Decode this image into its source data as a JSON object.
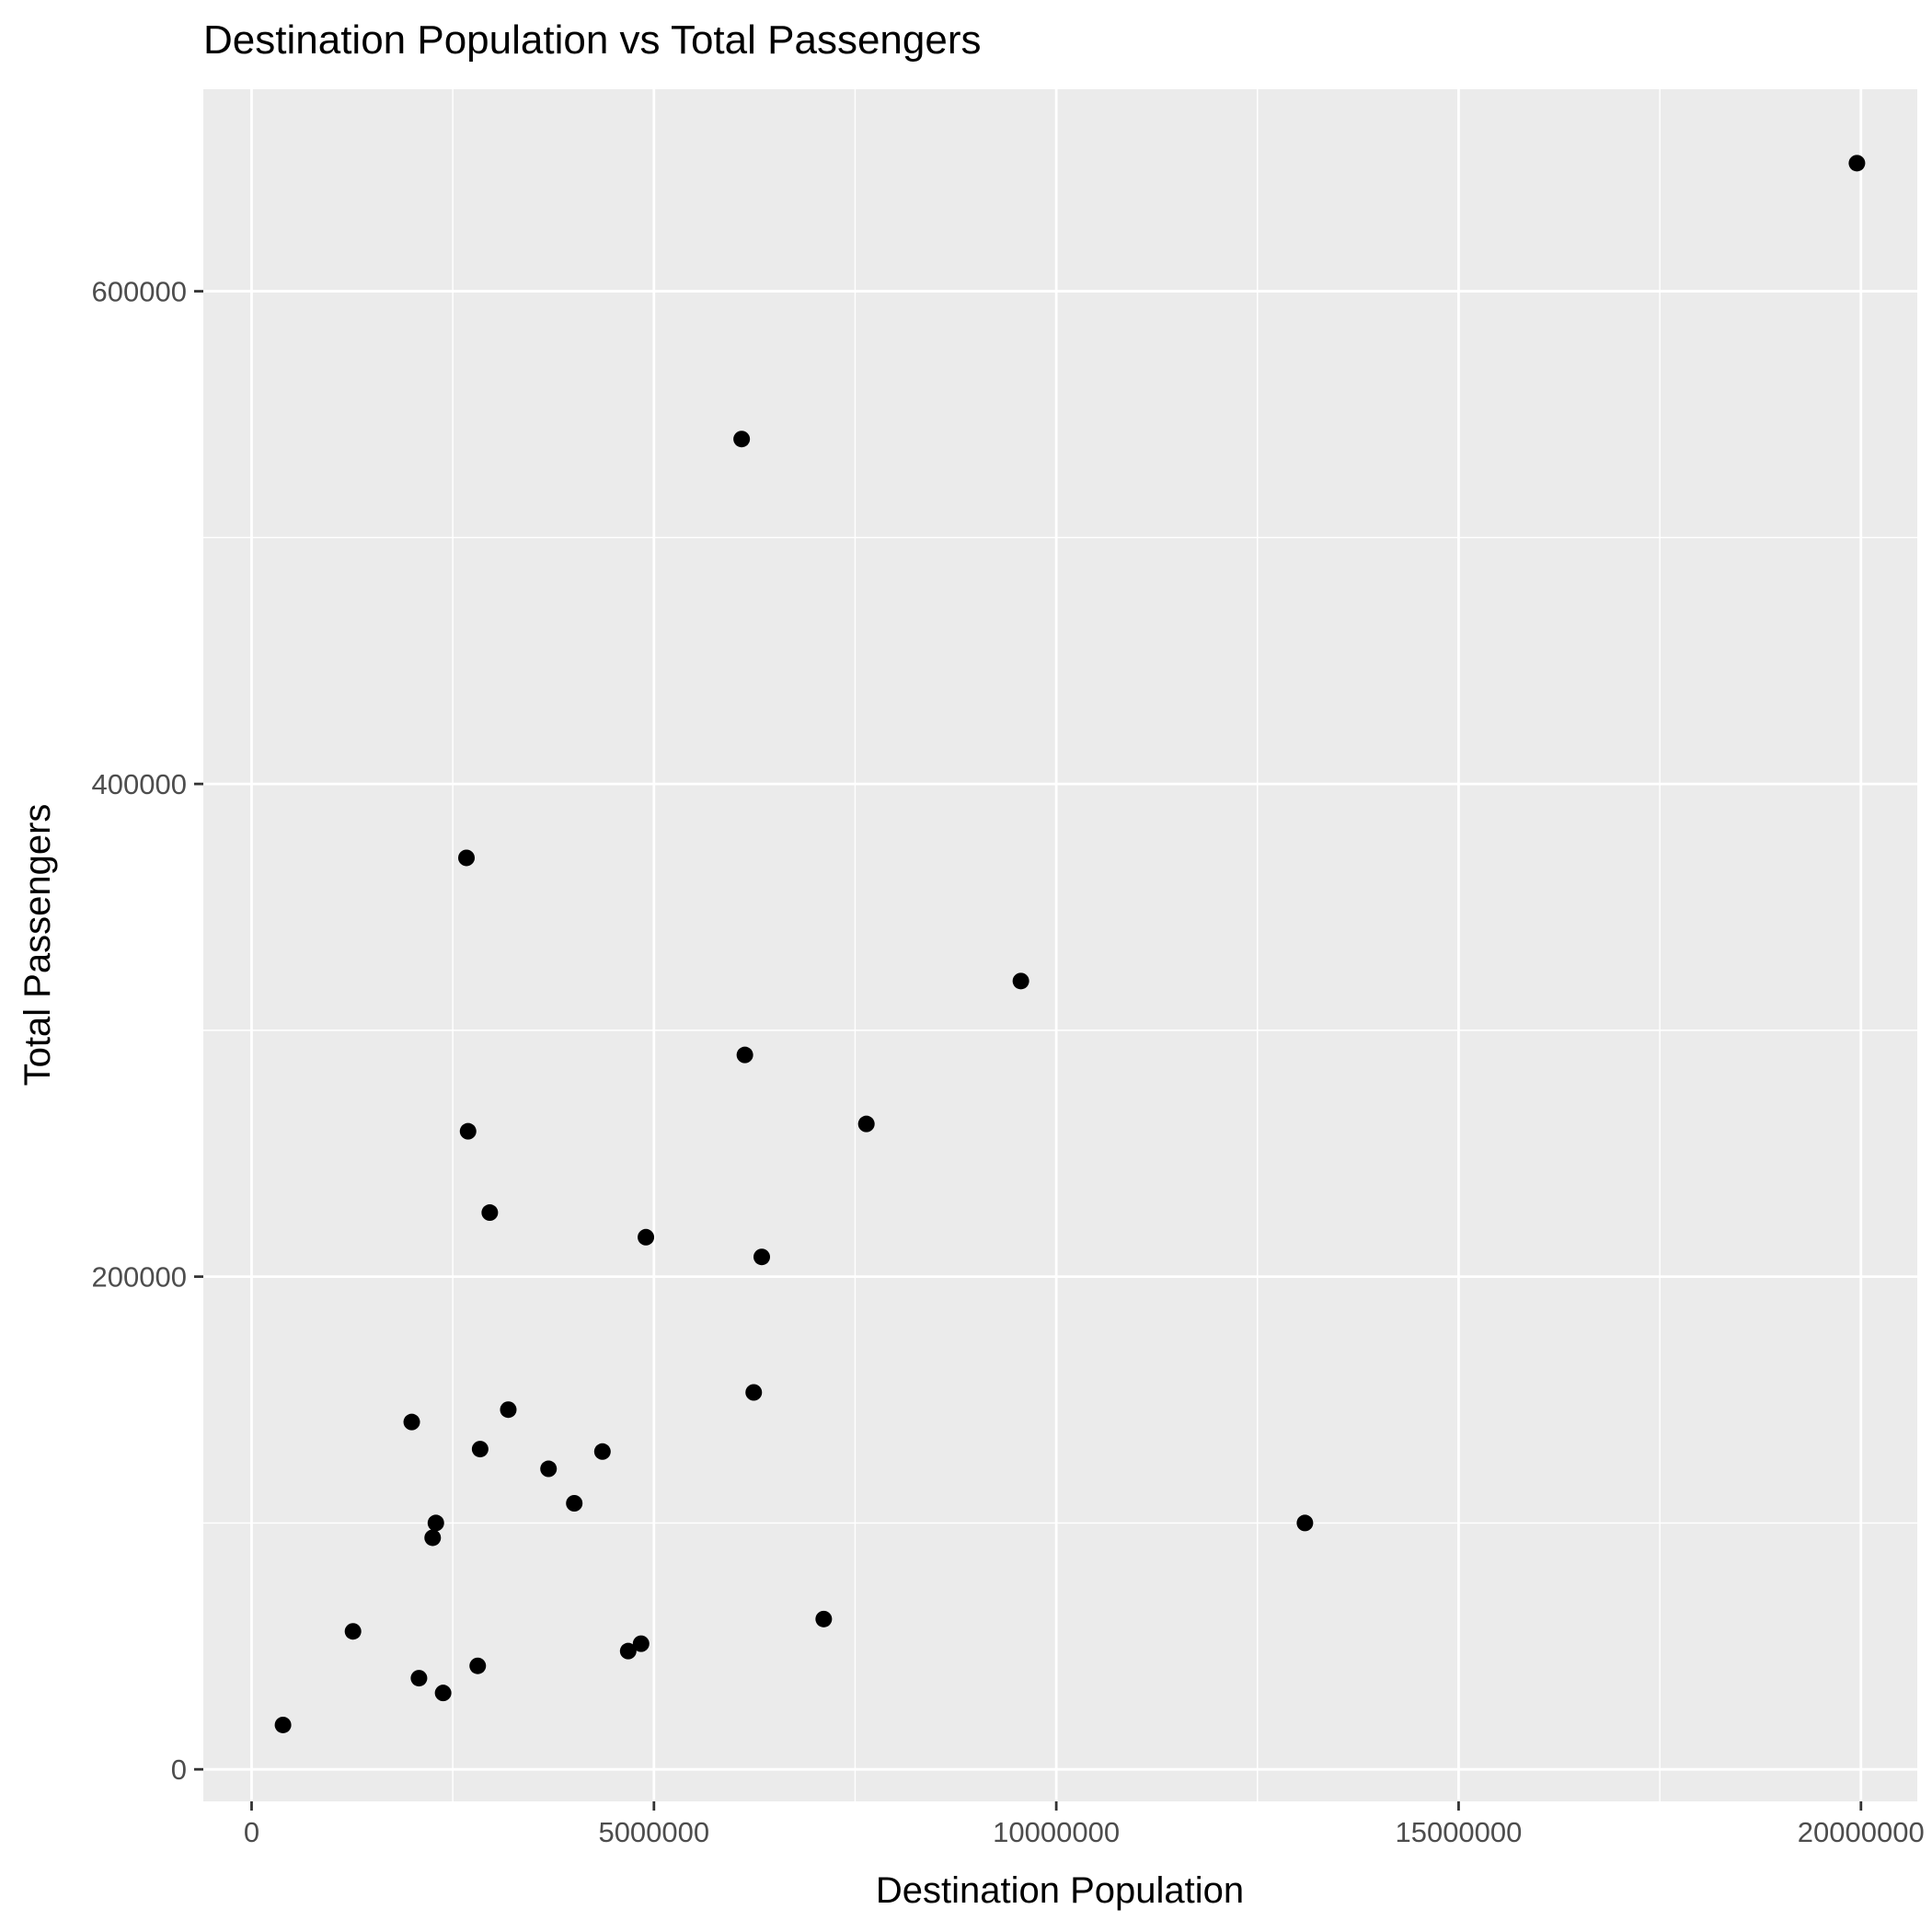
{
  "chart_data": {
    "type": "scatter",
    "title": "Destination Population vs Total Passengers",
    "xlabel": "Destination Population",
    "ylabel": "Total Passengers",
    "xlim": [
      -600000,
      20700000
    ],
    "ylim": [
      -13000,
      682000
    ],
    "x_ticks": [
      0,
      5000000,
      10000000,
      15000000,
      20000000
    ],
    "x_tick_labels": [
      "0",
      "5000000",
      "10000000",
      "15000000",
      "20000000"
    ],
    "y_ticks": [
      0,
      200000,
      400000,
      600000
    ],
    "y_tick_labels": [
      "0",
      "200000",
      "400000",
      "600000"
    ],
    "grid": true,
    "colors": {
      "panel": "#EBEBEB",
      "grid": "#FFFFFF",
      "point": "#000000",
      "tick_text": "#4D4D4D"
    },
    "points": [
      {
        "x": 19950000,
        "y": 652000
      },
      {
        "x": 6090000,
        "y": 540000
      },
      {
        "x": 2670000,
        "y": 370000
      },
      {
        "x": 9560000,
        "y": 320000
      },
      {
        "x": 6130000,
        "y": 290000
      },
      {
        "x": 7640000,
        "y": 262000
      },
      {
        "x": 2690000,
        "y": 259000
      },
      {
        "x": 2960000,
        "y": 226000
      },
      {
        "x": 4900000,
        "y": 216000
      },
      {
        "x": 6340000,
        "y": 208000
      },
      {
        "x": 6240000,
        "y": 153000
      },
      {
        "x": 3190000,
        "y": 146000
      },
      {
        "x": 1990000,
        "y": 141000
      },
      {
        "x": 2840000,
        "y": 130000
      },
      {
        "x": 4360000,
        "y": 129000
      },
      {
        "x": 3690000,
        "y": 122000
      },
      {
        "x": 4010000,
        "y": 108000
      },
      {
        "x": 2290000,
        "y": 100000
      },
      {
        "x": 2250000,
        "y": 94000
      },
      {
        "x": 13090000,
        "y": 100000
      },
      {
        "x": 7110000,
        "y": 61000
      },
      {
        "x": 1260000,
        "y": 56000
      },
      {
        "x": 4840000,
        "y": 51000
      },
      {
        "x": 4680000,
        "y": 48000
      },
      {
        "x": 2810000,
        "y": 42000
      },
      {
        "x": 2080000,
        "y": 37000
      },
      {
        "x": 2380000,
        "y": 31000
      },
      {
        "x": 390000,
        "y": 18000
      }
    ]
  }
}
